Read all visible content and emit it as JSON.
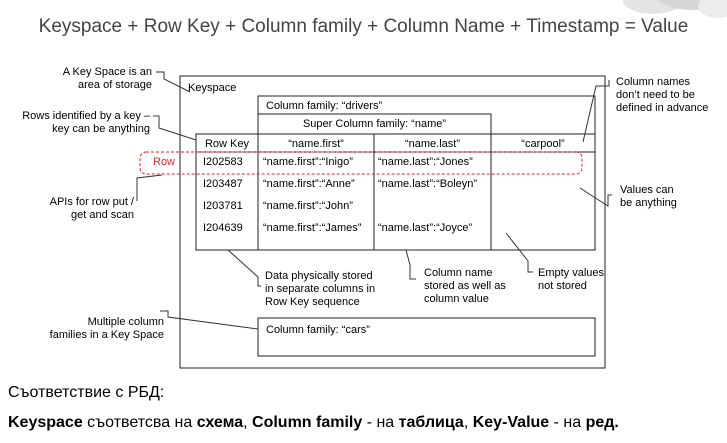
{
  "title": "Keyspace + Row Key + Column family + Column Name + Timestamp = Value",
  "diagram": {
    "keyspace_label": "Keyspace",
    "cf_drivers": "Column family: “drivers”",
    "super_cf": "Super Column family: “name”",
    "cf_cars": "Column family: “cars”",
    "headers": [
      "Row Key",
      "“name.first”",
      "“name.last”",
      "“carpool”"
    ],
    "rows": [
      [
        "I202583",
        "“name.first”:“Inigo”",
        "“name.last”:“Jones”"
      ],
      [
        "I203487",
        "“name.first”:“Anne”",
        "“name.last”:“Boleyn”"
      ],
      [
        "I203781",
        "“name.first”:“John”",
        ""
      ],
      [
        "I204639",
        "“name.first”:“James”",
        "“name.last”:“Joyce”"
      ]
    ],
    "row_marker": "Row"
  },
  "annotations": {
    "key_space": [
      "A Key Space is an",
      "area of storage"
    ],
    "rows_key": [
      "Rows identified by a key –",
      "key can be anything"
    ],
    "apis": [
      "APIs for row put /",
      "get and scan"
    ],
    "multiple_cf": [
      "Multiple column",
      "families in a Key Space"
    ],
    "column_names": [
      "Column names",
      "don’t need to be",
      "defined in advance"
    ],
    "values": [
      "Values can",
      "be anything"
    ],
    "data_stored": [
      "Data physically stored",
      "in separate columns in",
      "Row Key sequence"
    ],
    "column_name_stored": [
      "Column name",
      "stored as well as",
      "column value"
    ],
    "empty_values": [
      "Empty values",
      "not stored"
    ]
  },
  "footer": {
    "line1": "Съответствие с РБД:",
    "k1": "Keyspace",
    "t1": " съответсва на ",
    "k2": "схема",
    "t2": ", ",
    "k3": "Column family",
    "t3": " - на ",
    "k4": "таблица",
    "t4": ", ",
    "k5": "Key-Value",
    "t5": " - на ",
    "k6": "ред."
  },
  "colors": {
    "row_highlight": "#e0262b",
    "lines": "#222222",
    "title": "#444444"
  }
}
